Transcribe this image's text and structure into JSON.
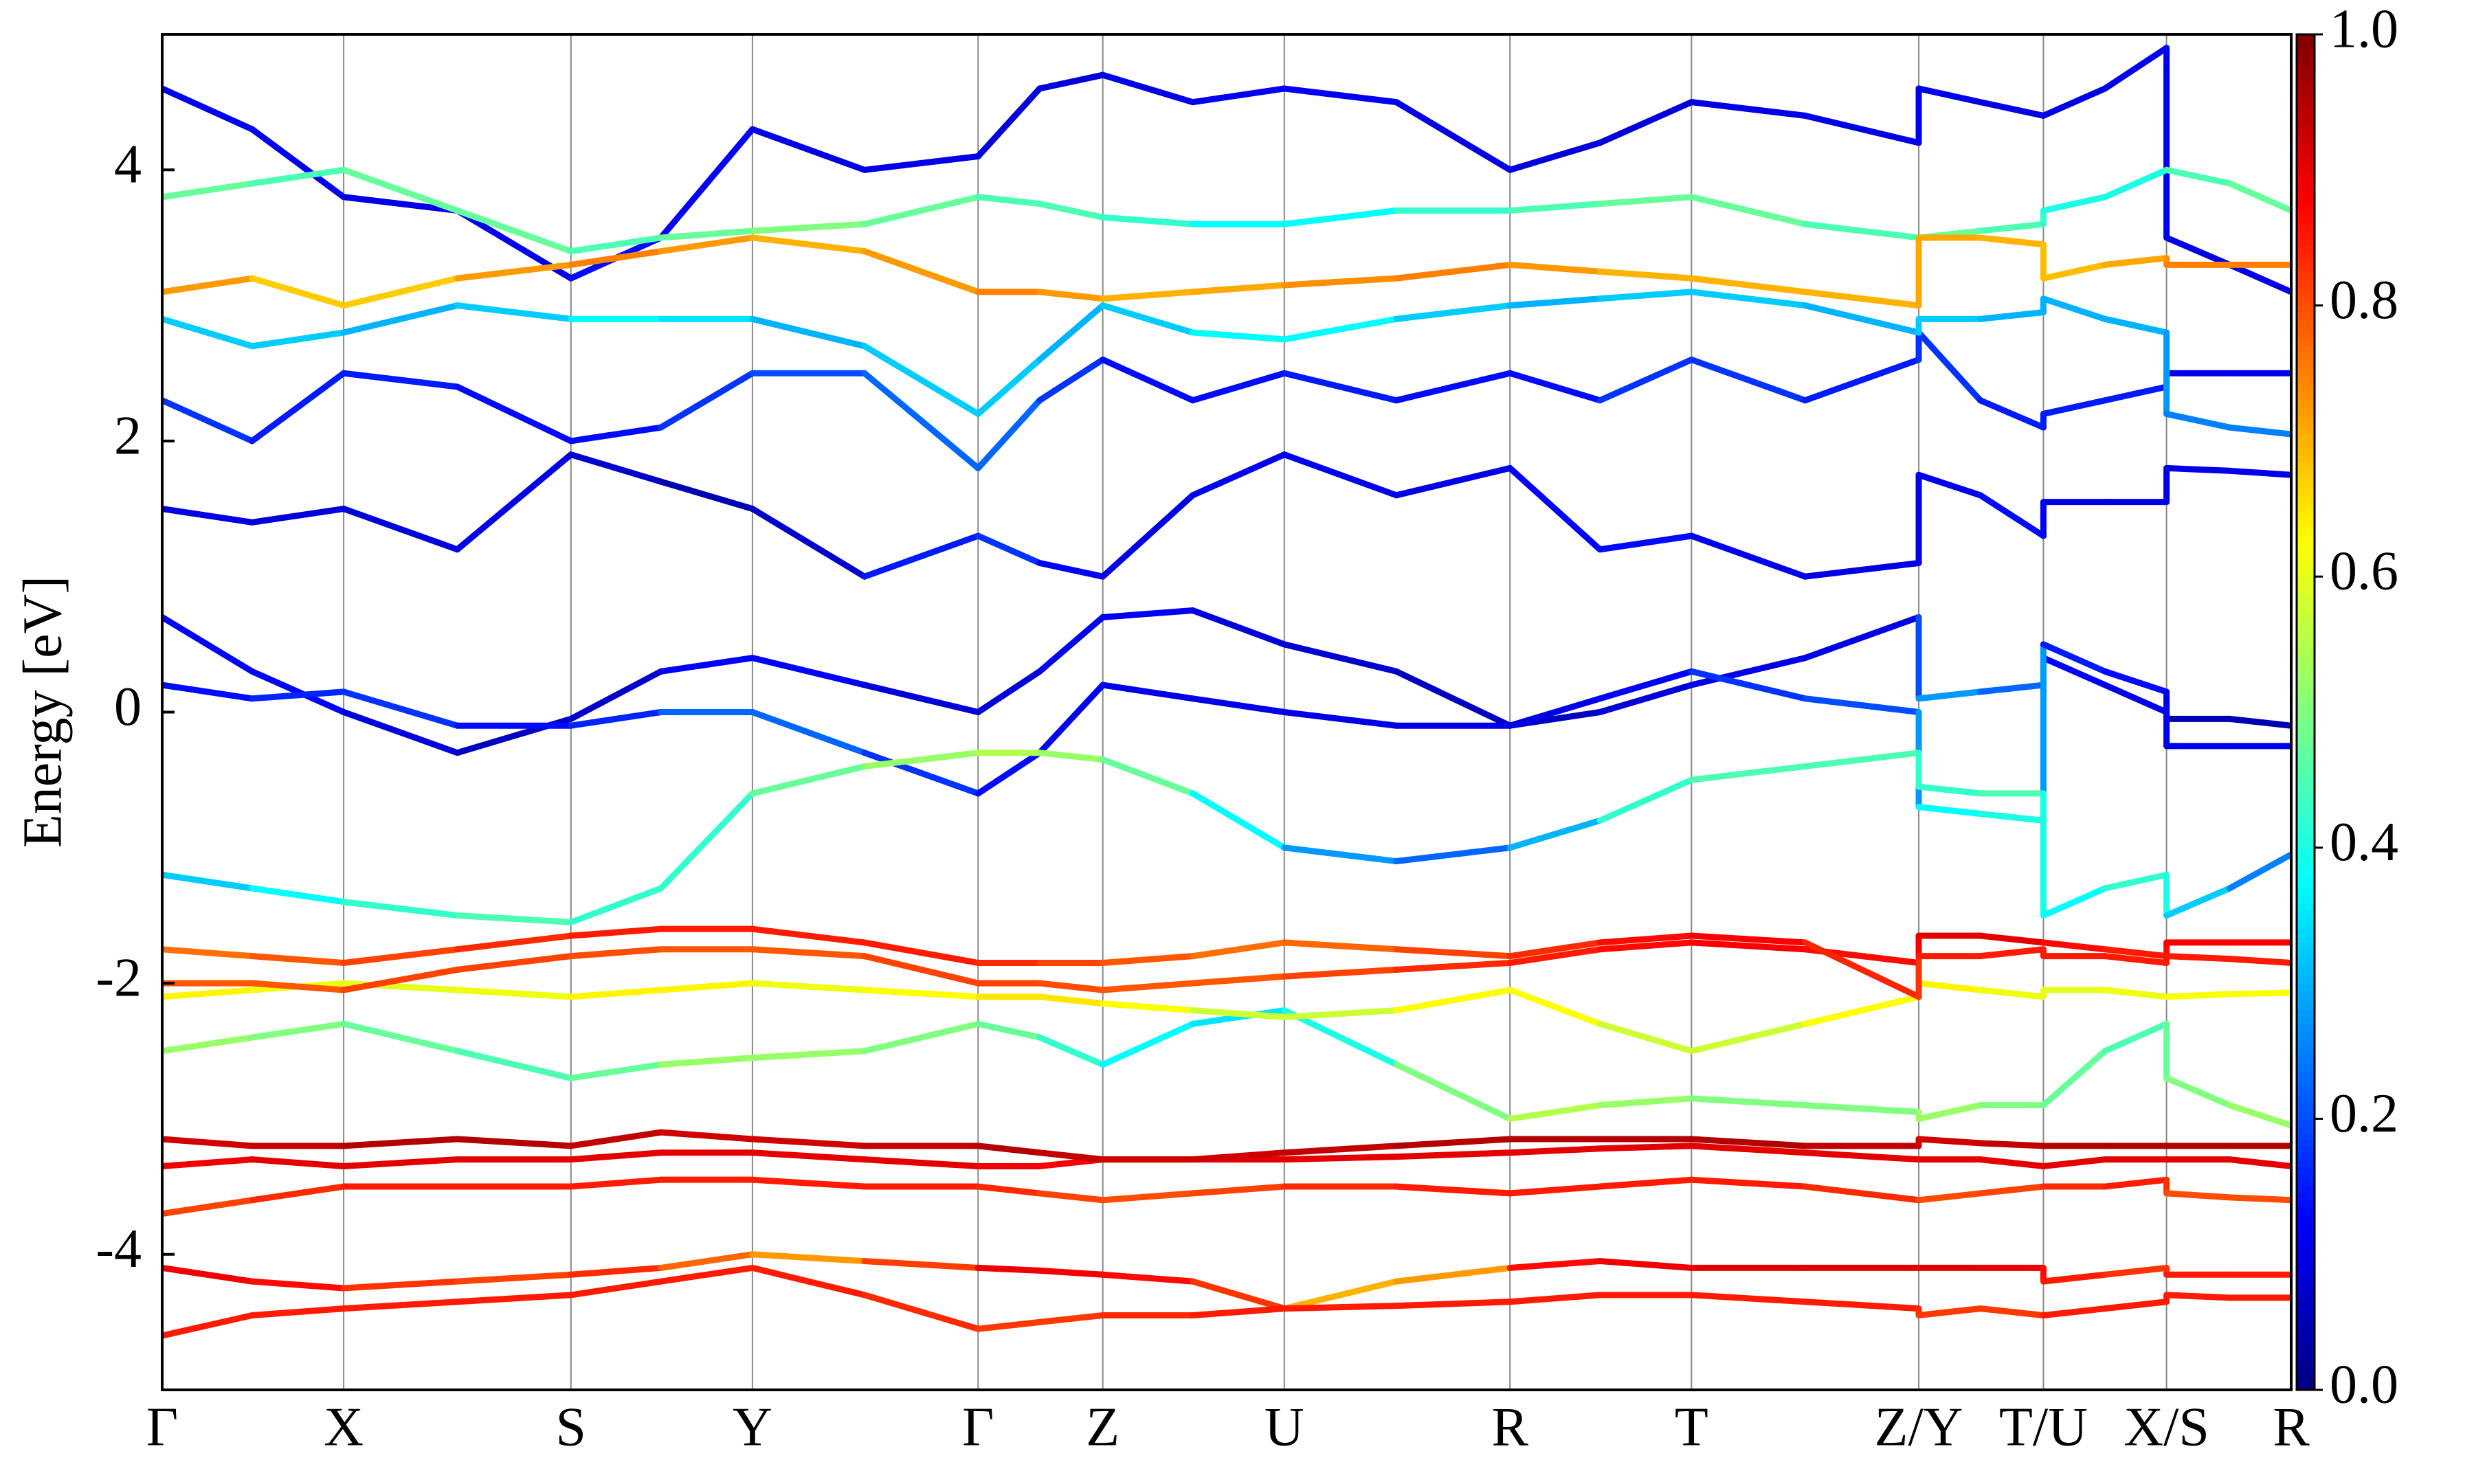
{
  "chart_data": {
    "type": "line",
    "ylabel": "Energy [eV]",
    "colormap": "jet",
    "grid": "x",
    "xlim": [
      0,
      13.49
    ],
    "ylim": [
      -5,
      5
    ],
    "yticks": [
      -4,
      -2,
      0,
      2,
      4
    ],
    "xticks": [
      {
        "value": 0,
        "label": "Γ"
      },
      {
        "value": 1.15,
        "label": "X"
      },
      {
        "value": 2.59,
        "label": "S"
      },
      {
        "value": 3.74,
        "label": "Y"
      },
      {
        "value": 5.17,
        "label": "Γ"
      },
      {
        "value": 5.96,
        "label": "Z"
      },
      {
        "value": 7.11,
        "label": "U"
      },
      {
        "value": 8.54,
        "label": "R"
      },
      {
        "value": 9.69,
        "label": "T"
      },
      {
        "value": 11.13,
        "label": "Z/Y"
      },
      {
        "value": 11.92,
        "label": "T/U"
      },
      {
        "value": 12.7,
        "label": "X/S"
      },
      {
        "value": 13.49,
        "label": "R"
      }
    ],
    "colorbar": {
      "clim": [
        0,
        1
      ],
      "ticks": [
        {
          "value": 0,
          "label": "0.0"
        },
        0.2,
        0.4,
        0.6,
        0.8,
        {
          "value": 1,
          "label": "1.0"
        }
      ]
    },
    "x": [
      0,
      0.57,
      1.15,
      1.87,
      2.59,
      3.16,
      3.74,
      4.45,
      5.17,
      5.56,
      5.96,
      6.53,
      7.11,
      7.82,
      8.54,
      9.11,
      9.69,
      10.41,
      11.13,
      11.13,
      11.52,
      11.92,
      11.92,
      12.31,
      12.7,
      12.7,
      13.1,
      13.49
    ],
    "series": [
      {
        "values": [
          4.6,
          4.3,
          3.8,
          3.7,
          3.2,
          3.5,
          4.3,
          4.0,
          4.1,
          4.6,
          4.7,
          4.5,
          4.6,
          4.5,
          4.0,
          4.2,
          4.5,
          4.4,
          4.2,
          4.6,
          4.5,
          4.4,
          4.4,
          4.6,
          4.9,
          3.5,
          3.3,
          3.1
        ],
        "weights": [
          0.1,
          0.12,
          0.1,
          0.1,
          0.12,
          0.15,
          0.1,
          0.1,
          0.1,
          0.08,
          0.1,
          0.1,
          0.12,
          0.1,
          0.1,
          0.08,
          0.1,
          0.1,
          0.1,
          0.12,
          0.1,
          0.1,
          0.1,
          0.1,
          0.12,
          0.1,
          0.1,
          0.1
        ]
      },
      {
        "values": [
          1.5,
          1.4,
          1.5,
          1.2,
          1.9,
          1.7,
          1.5,
          1.0,
          1.3,
          1.1,
          1.0,
          1.6,
          1.9,
          1.6,
          1.8,
          1.2,
          1.3,
          1.0,
          1.1,
          1.75,
          1.6,
          1.3,
          1.55,
          1.55,
          1.55,
          1.8,
          1.78,
          1.75
        ],
        "weights": [
          0.1,
          0.1,
          0.08,
          0.1,
          0.1,
          0.05,
          0.05,
          0.1,
          0.2,
          0.15,
          0.1,
          0.1,
          0.12,
          0.1,
          0.1,
          0.15,
          0.12,
          0.1,
          0.1,
          0.1,
          0.12,
          0.15,
          0.1,
          0.1,
          0.1,
          0.1,
          0.1,
          0.1
        ]
      },
      {
        "values": [
          2.3,
          2.0,
          2.5,
          2.4,
          2.0,
          2.1,
          2.5,
          2.5,
          1.8,
          2.3,
          2.6,
          2.3,
          2.5,
          2.3,
          2.5,
          2.3,
          2.6,
          2.3,
          2.6,
          2.8,
          2.3,
          2.1,
          2.2,
          2.3,
          2.4,
          2.5,
          2.5,
          2.5
        ],
        "weights": [
          0.2,
          0.15,
          0.15,
          0.15,
          0.12,
          0.15,
          0.2,
          0.2,
          0.25,
          0.2,
          0.15,
          0.12,
          0.15,
          0.15,
          0.12,
          0.15,
          0.2,
          0.15,
          0.15,
          0.2,
          0.15,
          0.15,
          0.15,
          0.15,
          0.15,
          0.1,
          0.1,
          0.1
        ]
      },
      {
        "values": [
          0.7,
          0.3,
          0.0,
          -0.3,
          -0.05,
          0.3,
          0.4,
          0.2,
          0.0,
          0.3,
          0.7,
          0.75,
          0.5,
          0.3,
          -0.1,
          0.0,
          0.2,
          0.4,
          0.7,
          0.1,
          0.15,
          0.2,
          0.4,
          0.2,
          0.0,
          -0.05,
          -0.05,
          -0.1
        ],
        "weights": [
          0.1,
          0.15,
          0.1,
          0.08,
          0.05,
          0.1,
          0.15,
          0.1,
          0.08,
          0.1,
          0.12,
          0.1,
          0.08,
          0.08,
          0.05,
          0.08,
          0.1,
          0.1,
          0.1,
          0.3,
          0.25,
          0.2,
          0.15,
          0.1,
          0.1,
          0.05,
          0.05,
          0.05
        ]
      },
      {
        "values": [
          0.2,
          0.1,
          0.15,
          -0.1,
          -0.1,
          0.0,
          0.0,
          -0.3,
          -0.6,
          -0.3,
          0.2,
          0.1,
          0.0,
          -0.1,
          -0.1,
          0.1,
          0.3,
          0.1,
          0.0,
          -0.7,
          -0.75,
          -0.8,
          0.5,
          0.3,
          0.15,
          -0.25,
          -0.25,
          -0.25
        ],
        "weights": [
          0.15,
          0.12,
          0.2,
          0.15,
          0.12,
          0.2,
          0.25,
          0.2,
          0.15,
          0.12,
          0.1,
          0.1,
          0.1,
          0.1,
          0.1,
          0.1,
          0.15,
          0.2,
          0.2,
          0.35,
          0.4,
          0.4,
          0.15,
          0.15,
          0.12,
          0.1,
          0.1,
          0.1
        ]
      },
      {
        "values": [
          2.9,
          2.7,
          2.8,
          3.0,
          2.9,
          2.9,
          2.9,
          2.7,
          2.2,
          2.6,
          3.0,
          2.8,
          2.75,
          2.9,
          3.0,
          3.05,
          3.1,
          3.0,
          2.8,
          2.9,
          2.9,
          2.95,
          3.05,
          2.9,
          2.8,
          2.2,
          2.1,
          2.05
        ],
        "weights": [
          0.3,
          0.35,
          0.3,
          0.3,
          0.35,
          0.4,
          0.3,
          0.3,
          0.35,
          0.3,
          0.3,
          0.35,
          0.4,
          0.35,
          0.3,
          0.3,
          0.35,
          0.3,
          0.3,
          0.35,
          0.3,
          0.3,
          0.3,
          0.3,
          0.3,
          0.25,
          0.25,
          0.25
        ]
      },
      {
        "values": [
          -1.2,
          -1.3,
          -1.4,
          -1.5,
          -1.55,
          -1.3,
          -0.6,
          -0.4,
          -0.3,
          -0.3,
          -0.35,
          -0.6,
          -1.0,
          -1.1,
          -1.0,
          -0.8,
          -0.5,
          -0.4,
          -0.3,
          -0.55,
          -0.6,
          -0.6,
          -1.5,
          -1.3,
          -1.2,
          -1.5,
          -1.3,
          -1.05
        ],
        "weights": [
          0.3,
          0.35,
          0.4,
          0.45,
          0.45,
          0.4,
          0.45,
          0.5,
          0.55,
          0.55,
          0.5,
          0.45,
          0.3,
          0.25,
          0.2,
          0.4,
          0.45,
          0.45,
          0.45,
          0.4,
          0.45,
          0.45,
          0.35,
          0.4,
          0.45,
          0.35,
          0.3,
          0.2
        ]
      },
      {
        "values": [
          3.8,
          3.9,
          4.0,
          3.7,
          3.4,
          3.5,
          3.55,
          3.6,
          3.8,
          3.75,
          3.65,
          3.6,
          3.6,
          3.7,
          3.7,
          3.75,
          3.8,
          3.6,
          3.5,
          3.5,
          3.55,
          3.6,
          3.7,
          3.8,
          4.0,
          4.0,
          3.9,
          3.7
        ],
        "weights": [
          0.5,
          0.45,
          0.45,
          0.5,
          0.45,
          0.45,
          0.5,
          0.5,
          0.45,
          0.45,
          0.45,
          0.4,
          0.35,
          0.4,
          0.45,
          0.45,
          0.5,
          0.45,
          0.45,
          0.5,
          0.45,
          0.45,
          0.4,
          0.4,
          0.4,
          0.45,
          0.45,
          0.5
        ]
      },
      {
        "values": [
          -2.5,
          -2.4,
          -2.3,
          -2.5,
          -2.7,
          -2.6,
          -2.55,
          -2.5,
          -2.3,
          -2.4,
          -2.6,
          -2.3,
          -2.2,
          -2.6,
          -3.0,
          -2.9,
          -2.85,
          -2.9,
          -2.95,
          -3.0,
          -2.9,
          -2.9,
          -2.9,
          -2.5,
          -2.3,
          -2.7,
          -2.9,
          -3.05
        ],
        "weights": [
          0.55,
          0.5,
          0.5,
          0.45,
          0.45,
          0.5,
          0.55,
          0.5,
          0.5,
          0.45,
          0.4,
          0.35,
          0.35,
          0.45,
          0.55,
          0.55,
          0.5,
          0.5,
          0.5,
          0.55,
          0.5,
          0.5,
          0.5,
          0.45,
          0.45,
          0.5,
          0.5,
          0.55
        ]
      },
      {
        "values": [
          3.1,
          3.2,
          3.0,
          3.2,
          3.3,
          3.4,
          3.5,
          3.4,
          3.1,
          3.1,
          3.05,
          3.1,
          3.15,
          3.2,
          3.3,
          3.25,
          3.2,
          3.1,
          3.0,
          3.5,
          3.5,
          3.45,
          3.2,
          3.3,
          3.35,
          3.3,
          3.3,
          3.3
        ],
        "weights": [
          0.75,
          0.7,
          0.65,
          0.7,
          0.75,
          0.75,
          0.7,
          0.7,
          0.75,
          0.75,
          0.7,
          0.7,
          0.72,
          0.75,
          0.75,
          0.7,
          0.7,
          0.7,
          0.7,
          0.72,
          0.7,
          0.7,
          0.68,
          0.7,
          0.72,
          0.75,
          0.75,
          0.75
        ]
      },
      {
        "values": [
          -2.1,
          -2.05,
          -2.0,
          -2.05,
          -2.1,
          -2.05,
          -2.0,
          -2.05,
          -2.1,
          -2.1,
          -2.15,
          -2.2,
          -2.25,
          -2.2,
          -2.05,
          -2.3,
          -2.5,
          -2.3,
          -2.1,
          -2.0,
          -2.05,
          -2.1,
          -2.05,
          -2.05,
          -2.1,
          -2.1,
          -2.08,
          -2.07
        ],
        "weights": [
          0.65,
          0.62,
          0.6,
          0.6,
          0.62,
          0.65,
          0.62,
          0.6,
          0.65,
          0.65,
          0.65,
          0.6,
          0.55,
          0.6,
          0.65,
          0.6,
          0.55,
          0.6,
          0.65,
          0.65,
          0.62,
          0.6,
          0.6,
          0.6,
          0.62,
          0.62,
          0.62,
          0.62
        ]
      },
      {
        "values": [
          -2.0,
          -2.0,
          -2.05,
          -1.9,
          -1.8,
          -1.75,
          -1.75,
          -1.8,
          -2.0,
          -2.0,
          -2.05,
          -2.0,
          -1.95,
          -1.9,
          -1.85,
          -1.75,
          -1.7,
          -1.75,
          -1.85,
          -1.65,
          -1.65,
          -1.7,
          -1.7,
          -1.75,
          -1.8,
          -1.7,
          -1.7,
          -1.7
        ],
        "weights": [
          0.8,
          0.78,
          0.8,
          0.82,
          0.8,
          0.8,
          0.78,
          0.8,
          0.82,
          0.8,
          0.8,
          0.78,
          0.8,
          0.82,
          0.85,
          0.85,
          0.88,
          0.88,
          0.85,
          0.9,
          0.9,
          0.9,
          0.88,
          0.85,
          0.85,
          0.88,
          0.88,
          0.88
        ]
      },
      {
        "values": [
          -1.75,
          -1.8,
          -1.85,
          -1.75,
          -1.65,
          -1.6,
          -1.6,
          -1.7,
          -1.85,
          -1.85,
          -1.85,
          -1.8,
          -1.7,
          -1.75,
          -1.8,
          -1.7,
          -1.65,
          -1.7,
          -2.1,
          -1.8,
          -1.8,
          -1.75,
          -1.8,
          -1.8,
          -1.85,
          -1.8,
          -1.82,
          -1.85
        ],
        "weights": [
          0.75,
          0.78,
          0.8,
          0.82,
          0.85,
          0.85,
          0.85,
          0.85,
          0.85,
          0.82,
          0.8,
          0.78,
          0.75,
          0.8,
          0.82,
          0.85,
          0.88,
          0.88,
          0.8,
          0.85,
          0.85,
          0.85,
          0.85,
          0.85,
          0.85,
          0.85,
          0.85,
          0.85
        ]
      },
      {
        "values": [
          -3.7,
          -3.6,
          -3.5,
          -3.5,
          -3.5,
          -3.45,
          -3.45,
          -3.5,
          -3.5,
          -3.55,
          -3.6,
          -3.55,
          -3.5,
          -3.5,
          -3.55,
          -3.5,
          -3.45,
          -3.5,
          -3.6,
          -3.6,
          -3.55,
          -3.5,
          -3.5,
          -3.5,
          -3.45,
          -3.55,
          -3.58,
          -3.6
        ],
        "weights": [
          0.8,
          0.82,
          0.85,
          0.85,
          0.85,
          0.85,
          0.85,
          0.85,
          0.85,
          0.82,
          0.8,
          0.8,
          0.82,
          0.85,
          0.85,
          0.85,
          0.85,
          0.85,
          0.82,
          0.8,
          0.8,
          0.82,
          0.82,
          0.85,
          0.85,
          0.8,
          0.8,
          0.8
        ]
      },
      {
        "values": [
          -3.35,
          -3.3,
          -3.35,
          -3.3,
          -3.3,
          -3.25,
          -3.25,
          -3.3,
          -3.35,
          -3.35,
          -3.3,
          -3.3,
          -3.3,
          -3.28,
          -3.25,
          -3.22,
          -3.2,
          -3.25,
          -3.3,
          -3.3,
          -3.3,
          -3.35,
          -3.35,
          -3.3,
          -3.3,
          -3.3,
          -3.3,
          -3.35
        ],
        "weights": [
          0.88,
          0.9,
          0.9,
          0.9,
          0.9,
          0.9,
          0.9,
          0.9,
          0.9,
          0.88,
          0.88,
          0.9,
          0.9,
          0.9,
          0.9,
          0.9,
          0.9,
          0.9,
          0.9,
          0.9,
          0.9,
          0.9,
          0.9,
          0.9,
          0.9,
          0.9,
          0.9,
          0.9
        ]
      },
      {
        "values": [
          -3.15,
          -3.2,
          -3.2,
          -3.15,
          -3.2,
          -3.1,
          -3.15,
          -3.2,
          -3.2,
          -3.25,
          -3.3,
          -3.3,
          -3.25,
          -3.2,
          -3.15,
          -3.15,
          -3.15,
          -3.2,
          -3.2,
          -3.15,
          -3.18,
          -3.2,
          -3.2,
          -3.2,
          -3.2,
          -3.2,
          -3.2,
          -3.2
        ],
        "weights": [
          0.92,
          0.92,
          0.95,
          0.95,
          0.95,
          0.92,
          0.92,
          0.92,
          0.95,
          0.95,
          0.92,
          0.92,
          0.92,
          0.95,
          0.95,
          0.95,
          0.95,
          0.95,
          0.92,
          0.92,
          0.92,
          0.95,
          0.95,
          0.95,
          0.95,
          0.95,
          0.95,
          0.95
        ]
      },
      {
        "values": [
          -4.1,
          -4.2,
          -4.25,
          -4.2,
          -4.15,
          -4.1,
          -4.0,
          -4.05,
          -4.1,
          -4.12,
          -4.15,
          -4.2,
          -4.4,
          -4.2,
          -4.1,
          -4.05,
          -4.1,
          -4.1,
          -4.1,
          -4.1,
          -4.1,
          -4.1,
          -4.2,
          -4.15,
          -4.1,
          -4.15,
          -4.15,
          -4.15
        ],
        "weights": [
          0.9,
          0.88,
          0.85,
          0.8,
          0.82,
          0.85,
          0.7,
          0.75,
          0.88,
          0.9,
          0.88,
          0.85,
          0.8,
          0.6,
          0.85,
          0.88,
          0.9,
          0.9,
          0.9,
          0.9,
          0.9,
          0.88,
          0.85,
          0.85,
          0.8,
          0.85,
          0.85,
          0.85
        ]
      },
      {
        "values": [
          -4.6,
          -4.45,
          -4.4,
          -4.35,
          -4.3,
          -4.2,
          -4.1,
          -4.3,
          -4.55,
          -4.5,
          -4.45,
          -4.45,
          -4.4,
          -4.38,
          -4.35,
          -4.3,
          -4.3,
          -4.35,
          -4.4,
          -4.45,
          -4.4,
          -4.45,
          -4.45,
          -4.4,
          -4.35,
          -4.3,
          -4.32,
          -4.32
        ],
        "weights": [
          0.85,
          0.85,
          0.85,
          0.85,
          0.85,
          0.85,
          0.85,
          0.85,
          0.82,
          0.82,
          0.82,
          0.85,
          0.85,
          0.85,
          0.85,
          0.85,
          0.85,
          0.85,
          0.85,
          0.82,
          0.82,
          0.82,
          0.85,
          0.85,
          0.85,
          0.85,
          0.85,
          0.85
        ]
      }
    ]
  }
}
